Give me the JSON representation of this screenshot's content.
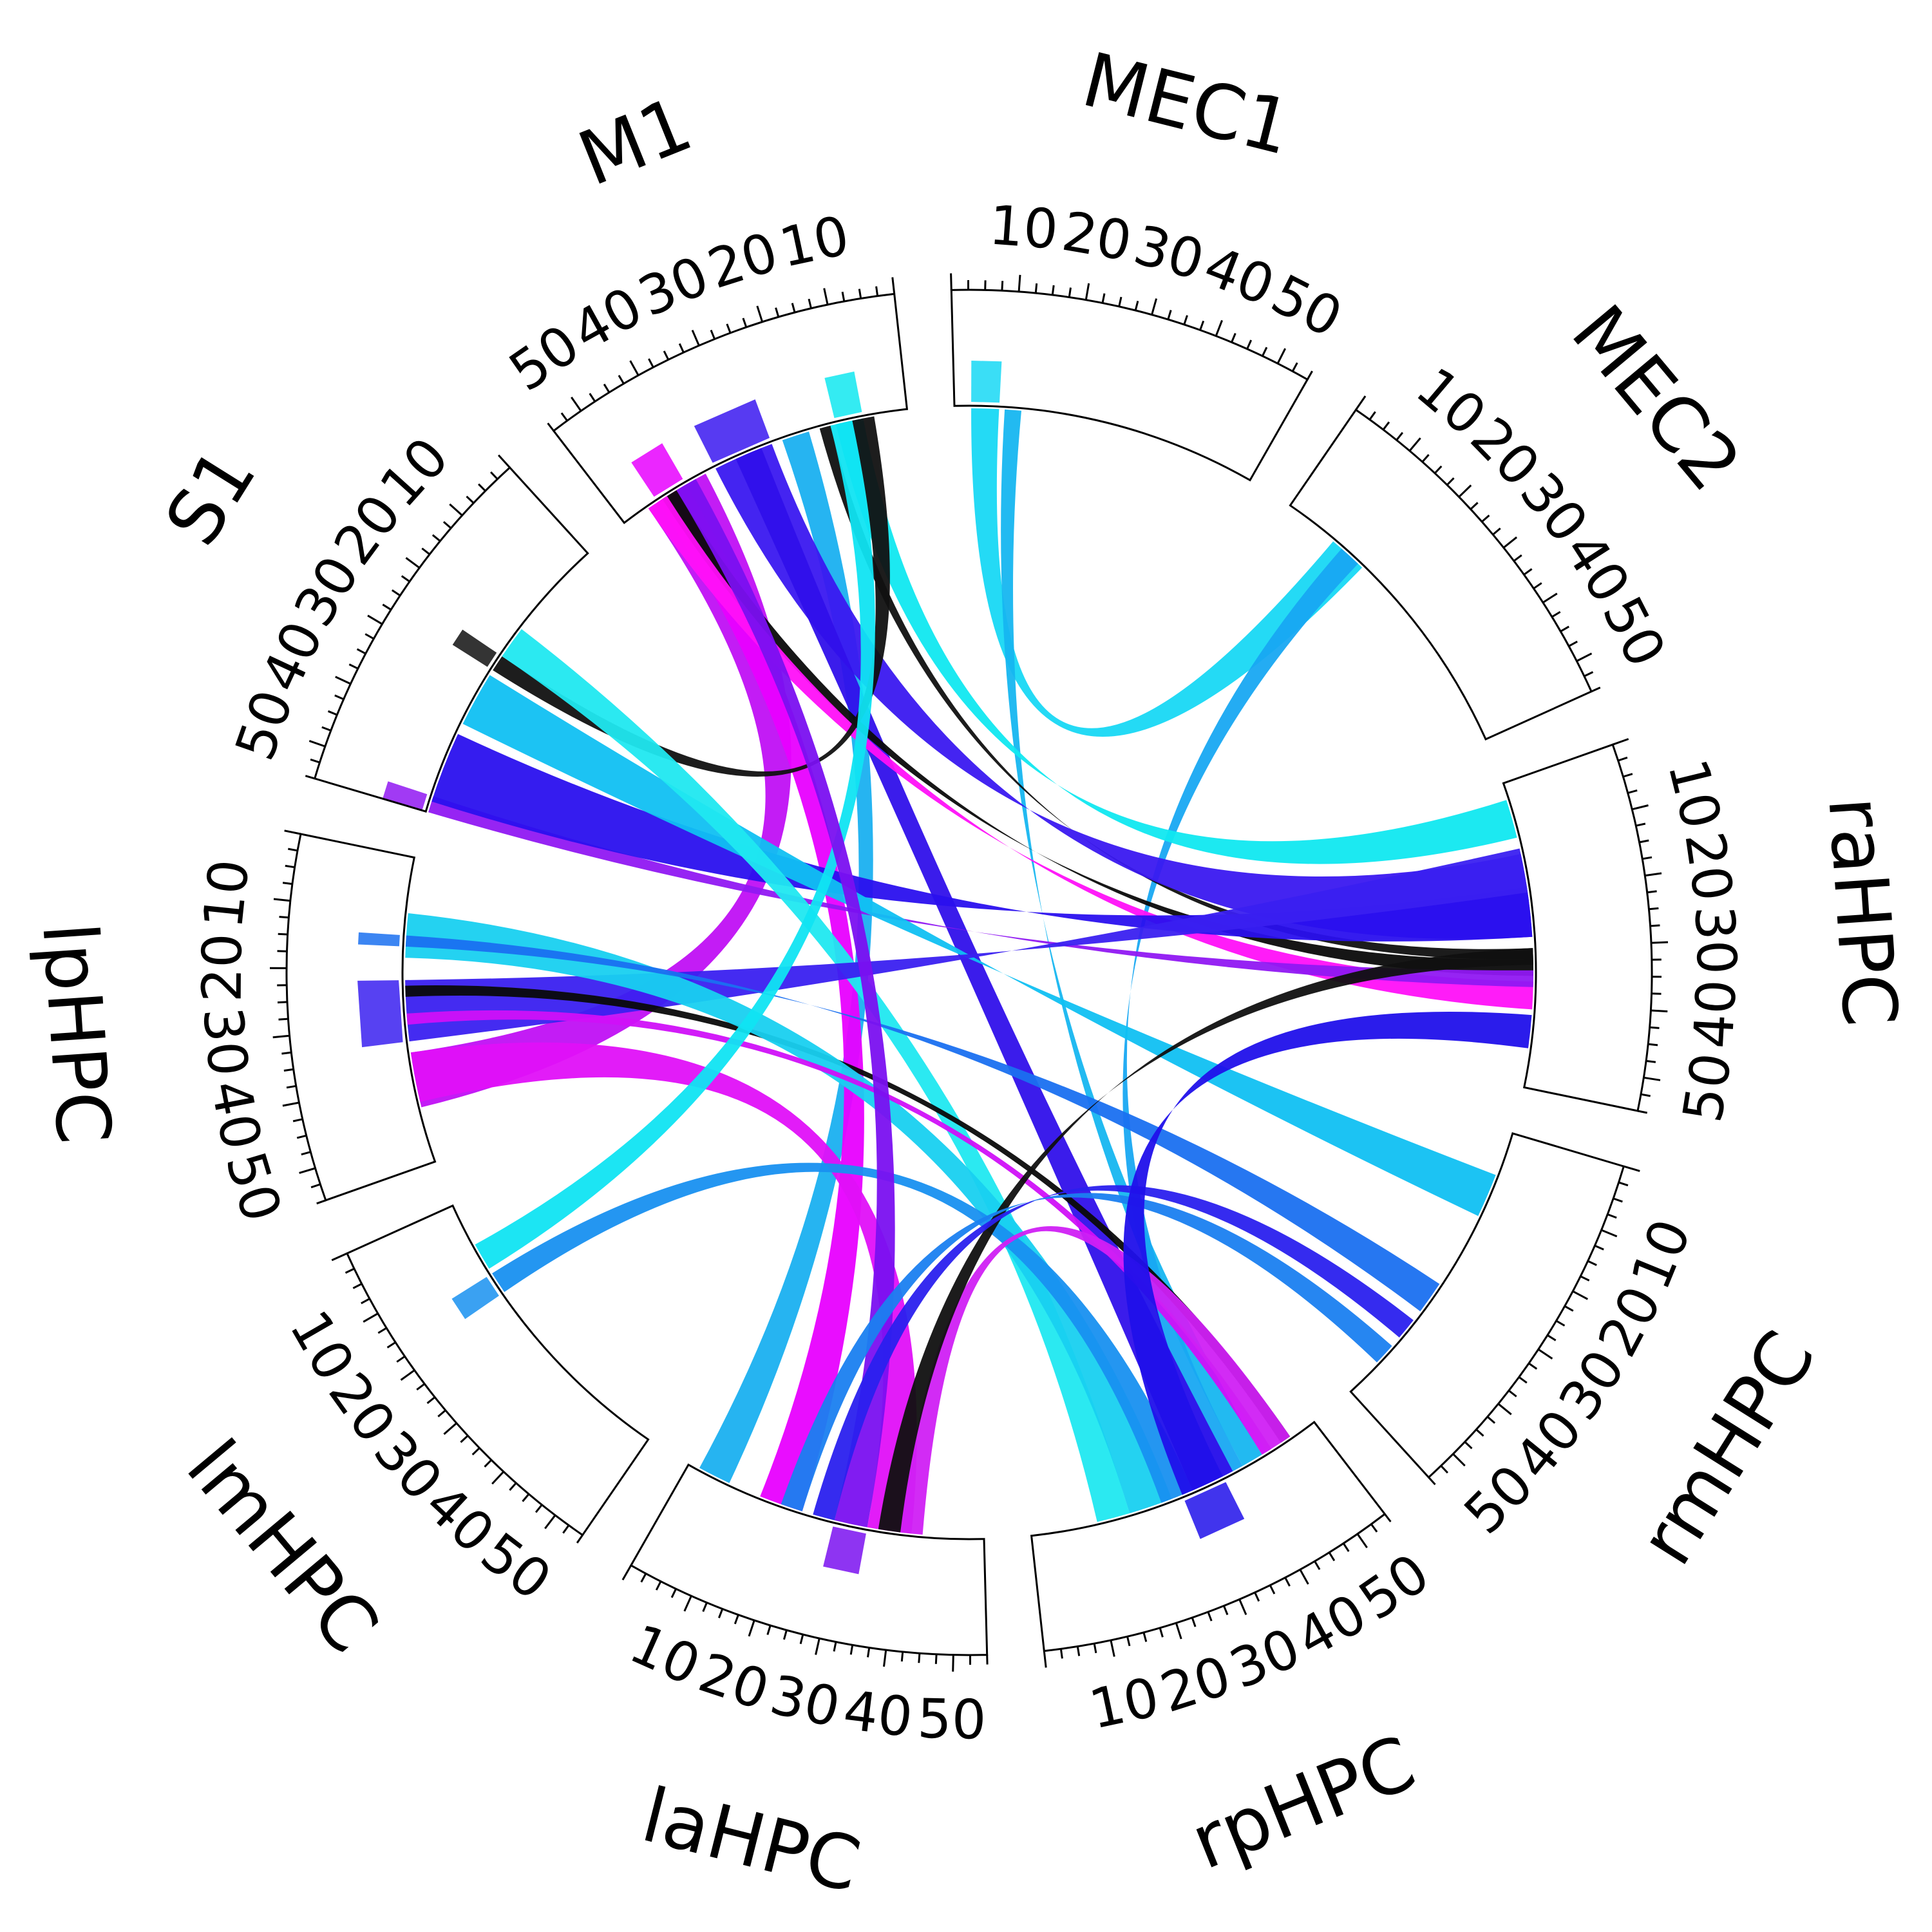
{
  "chart_data": {
    "type": "chord",
    "tick_values": [
      "10",
      "20",
      "30",
      "40",
      "50"
    ],
    "segments": [
      {
        "id": "MEC1",
        "label": "MEC1"
      },
      {
        "id": "MEC2",
        "label": "MEC2"
      },
      {
        "id": "raHPC",
        "label": "raHPC"
      },
      {
        "id": "rmHPC",
        "label": "rmHPC"
      },
      {
        "id": "rpHPC",
        "label": "rpHPC"
      },
      {
        "id": "laHPC",
        "label": "laHPC"
      },
      {
        "id": "lmHPC",
        "label": "lmHPC"
      },
      {
        "id": "lpHPC",
        "label": "lpHPC"
      },
      {
        "id": "S1",
        "label": "S1"
      },
      {
        "id": "M1",
        "label": "M1"
      }
    ],
    "segment_range": [
      0,
      55
    ],
    "links": [
      {
        "source": "MEC1",
        "s": [
          3,
          8
        ],
        "target": "MEC2",
        "t": [
          10,
          17
        ],
        "color": "#18d8f4"
      },
      {
        "source": "MEC1",
        "s": [
          9,
          12
        ],
        "target": "rpHPC",
        "t": [
          40,
          44
        ],
        "color": "#16b6f0"
      },
      {
        "source": "MEC2",
        "s": [
          12,
          16
        ],
        "target": "rpHPC",
        "t": [
          36,
          40
        ],
        "color": "#18a8f2"
      },
      {
        "source": "M1",
        "s": [
          8,
          13
        ],
        "target": "raHPC",
        "t": [
          3,
          10
        ],
        "color": "#10e8f0"
      },
      {
        "source": "M1",
        "s": [
          14,
          16
        ],
        "target": "raHPC",
        "t": [
          30,
          32
        ],
        "color": "#101010"
      },
      {
        "source": "M1",
        "s": [
          18,
          23
        ],
        "target": "laHPC",
        "t": [
          2,
          8
        ],
        "color": "#1ab0f0"
      },
      {
        "source": "M1",
        "s": [
          25,
          36
        ],
        "target": "raHPC",
        "t": [
          13,
          28
        ],
        "color": "#3a18f0"
      },
      {
        "source": "M1",
        "s": [
          27,
          32
        ],
        "target": "rpHPC",
        "t": [
          30,
          38
        ],
        "color": "#3010ea"
      },
      {
        "source": "M1",
        "s": [
          38,
          50
        ],
        "target": "lpHPC",
        "t": [
          35,
          45
        ],
        "color": "#c010f4"
      },
      {
        "source": "M1",
        "s": [
          42,
          48
        ],
        "target": "laHPC",
        "t": [
          14,
          22
        ],
        "color": "#e800ff"
      },
      {
        "source": "M1",
        "s": [
          44,
          47
        ],
        "target": "raHPC",
        "t": [
          32,
          35
        ],
        "color": "#0a0a0a"
      },
      {
        "source": "M1",
        "s": [
          46,
          50
        ],
        "target": "raHPC",
        "t": [
          36,
          41
        ],
        "color": "#ff10f8"
      },
      {
        "source": "S1",
        "s": [
          52,
          55
        ],
        "target": "raHPC",
        "t": [
          34,
          37
        ],
        "color": "#9018f2"
      },
      {
        "source": "S1",
        "s": [
          40,
          53
        ],
        "target": "raHPC",
        "t": [
          19,
          28
        ],
        "color": "#2a10ee"
      },
      {
        "source": "S1",
        "s": [
          28,
          38
        ],
        "target": "rmHPC",
        "t": [
          8,
          16
        ],
        "color": "#10c0f2"
      },
      {
        "source": "S1",
        "s": [
          24,
          27
        ],
        "target": "M1",
        "t": [
          6,
          10
        ],
        "color": "#111111"
      },
      {
        "source": "S1",
        "s": [
          18,
          24
        ],
        "target": "rpHPC",
        "t": [
          12,
          18
        ],
        "color": "#20e8f0"
      },
      {
        "source": "lpHPC",
        "s": [
          35,
          44
        ],
        "target": "laHPC",
        "t": [
          34,
          42
        ],
        "color": "#e010f8"
      },
      {
        "source": "lpHPC",
        "s": [
          22,
          33
        ],
        "target": "raHPC",
        "t": [
          12,
          20
        ],
        "color": "#3a20f0"
      },
      {
        "source": "lpHPC",
        "s": [
          23,
          25
        ],
        "target": "rpHPC",
        "t": [
          48,
          50
        ],
        "color": "#0a0a0a"
      },
      {
        "source": "lpHPC",
        "s": [
          10,
          18
        ],
        "target": "rpHPC",
        "t": [
          18,
          26
        ],
        "color": "#18d0f0"
      },
      {
        "source": "lpHPC",
        "s": [
          14,
          16
        ],
        "target": "rmHPC",
        "t": [
          30,
          36
        ],
        "color": "#1a70f0"
      },
      {
        "source": "lpHPC",
        "s": [
          28,
          30
        ],
        "target": "rpHPC",
        "t": [
          44,
          46
        ],
        "color": "#d010f8"
      },
      {
        "source": "lmHPC",
        "s": [
          8,
          13
        ],
        "target": "M1",
        "t": [
          10,
          14
        ],
        "color": "#10e4f2"
      },
      {
        "source": "lmHPC",
        "s": [
          14,
          18
        ],
        "target": "rpHPC",
        "t": [
          24,
          30
        ],
        "color": "#1890f0"
      },
      {
        "source": "laHPC",
        "s": [
          40,
          44
        ],
        "target": "rpHPC",
        "t": [
          45,
          50
        ],
        "color": "#d020f4"
      },
      {
        "source": "laHPC",
        "s": [
          36,
          40
        ],
        "target": "raHPC",
        "t": [
          30,
          33
        ],
        "color": "#101010"
      },
      {
        "source": "laHPC",
        "s": [
          28,
          34
        ],
        "target": "M1",
        "t": [
          40,
          44
        ],
        "color": "#7a10f0"
      },
      {
        "source": "laHPC",
        "s": [
          24,
          28
        ],
        "target": "rmHPC",
        "t": [
          38,
          42
        ],
        "color": "#2a20ee"
      },
      {
        "source": "laHPC",
        "s": [
          18,
          22
        ],
        "target": "rmHPC",
        "t": [
          44,
          48
        ],
        "color": "#1a80f0"
      },
      {
        "source": "rpHPC",
        "s": [
          28,
          36
        ],
        "target": "raHPC",
        "t": [
          42,
          48
        ],
        "color": "#2010ea"
      }
    ]
  }
}
